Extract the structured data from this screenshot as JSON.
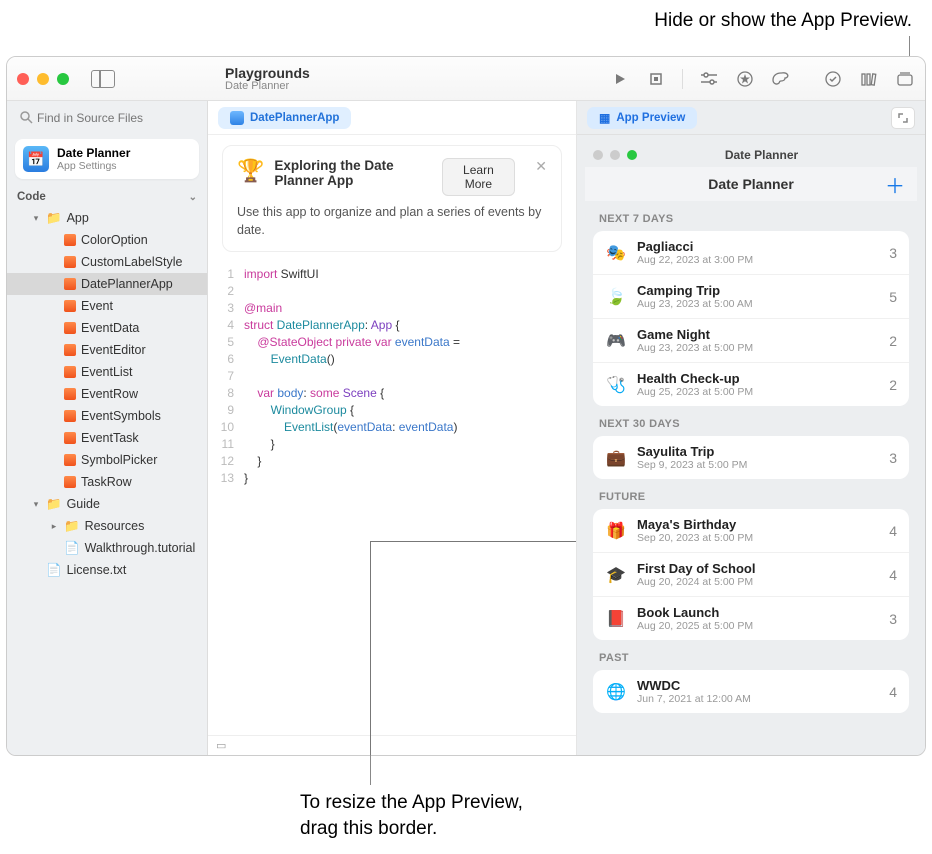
{
  "annotations": {
    "top": "Hide or show the App Preview.",
    "bottom_line1": "To resize the App Preview,",
    "bottom_line2": "drag this border."
  },
  "window": {
    "title": "Playgrounds",
    "subtitle": "Date Planner"
  },
  "sidebar": {
    "search_placeholder": "Find in Source Files",
    "project": {
      "title": "Date Planner",
      "subtitle": "App Settings"
    },
    "code_header": "Code",
    "items": [
      {
        "type": "folder",
        "label": "App",
        "indent": 1,
        "open": true
      },
      {
        "type": "swift",
        "label": "ColorOption",
        "indent": 2
      },
      {
        "type": "swift",
        "label": "CustomLabelStyle",
        "indent": 2
      },
      {
        "type": "swift",
        "label": "DatePlannerApp",
        "indent": 2,
        "selected": true
      },
      {
        "type": "swift",
        "label": "Event",
        "indent": 2
      },
      {
        "type": "swift",
        "label": "EventData",
        "indent": 2
      },
      {
        "type": "swift",
        "label": "EventEditor",
        "indent": 2
      },
      {
        "type": "swift",
        "label": "EventList",
        "indent": 2
      },
      {
        "type": "swift",
        "label": "EventRow",
        "indent": 2
      },
      {
        "type": "swift",
        "label": "EventSymbols",
        "indent": 2
      },
      {
        "type": "swift",
        "label": "EventTask",
        "indent": 2
      },
      {
        "type": "swift",
        "label": "SymbolPicker",
        "indent": 2
      },
      {
        "type": "swift",
        "label": "TaskRow",
        "indent": 2
      },
      {
        "type": "folder",
        "label": "Guide",
        "indent": 1,
        "open": true
      },
      {
        "type": "folder",
        "label": "Resources",
        "indent": 2,
        "open": false
      },
      {
        "type": "doc",
        "label": "Walkthrough.tutorial",
        "indent": 2
      },
      {
        "type": "doc",
        "label": "License.txt",
        "indent": 1
      }
    ]
  },
  "tab": {
    "label": "DatePlannerApp"
  },
  "info_card": {
    "title": "Exploring the Date Planner App",
    "button": "Learn More",
    "body": "Use this app to organize and plan a series of events by date."
  },
  "code": {
    "lines": [
      {
        "n": 1
      },
      {
        "n": 2
      },
      {
        "n": 3
      },
      {
        "n": 4
      },
      {
        "n": 5
      },
      {
        "n": 6
      },
      {
        "n": 7
      },
      {
        "n": 8
      },
      {
        "n": 9
      },
      {
        "n": 10
      },
      {
        "n": 11
      },
      {
        "n": 12
      },
      {
        "n": 13
      }
    ],
    "tokens": {
      "l1a": "import",
      "l1b": " SwiftUI",
      "l3a": "@main",
      "l4a": "struct",
      "l4b": " DatePlannerApp",
      "l4c": ": ",
      "l4d": "App",
      "l4e": " {",
      "l5a": "    @StateObject",
      "l5b": " private",
      "l5c": " var",
      "l5d": " eventData",
      "l5e": " = ",
      "l6a": "        EventData",
      "l6b": "()",
      "l7a": "    var",
      "l7b": " body",
      "l7c": ": ",
      "l7d": "some",
      "l7e": " Scene",
      "l7f": " {",
      "l8a": "        WindowGroup",
      "l8b": " {",
      "l9a": "            EventList",
      "l9b": "(",
      "l9c": "eventData",
      "l9d": ": ",
      "l9e": "eventData",
      "l9f": ")",
      "l10": "        }",
      "l11": "    }",
      "l12": "}"
    }
  },
  "preview": {
    "pill": "App Preview",
    "sim_title": "Date Planner",
    "nav_title": "Date Planner",
    "groups": [
      {
        "header": "NEXT 7 DAYS",
        "events": [
          {
            "icon": "🎭",
            "color": "#f2b200",
            "title": "Pagliacci",
            "date": "Aug 22, 2023 at 3:00 PM",
            "count": 3
          },
          {
            "icon": "🍃",
            "color": "#3bba5a",
            "title": "Camping Trip",
            "date": "Aug 23, 2023 at 5:00 AM",
            "count": 5
          },
          {
            "icon": "🎮",
            "color": "#3a9cf0",
            "title": "Game Night",
            "date": "Aug 23, 2023 at 5:00 PM",
            "count": 2
          },
          {
            "icon": "🩺",
            "color": "#6f62e8",
            "title": "Health Check-up",
            "date": "Aug 25, 2023 at 5:00 PM",
            "count": 2
          }
        ]
      },
      {
        "header": "NEXT 30 DAYS",
        "events": [
          {
            "icon": "💼",
            "color": "#f08a2c",
            "title": "Sayulita Trip",
            "date": "Sep 9, 2023 at 5:00 PM",
            "count": 3
          }
        ]
      },
      {
        "header": "FUTURE",
        "events": [
          {
            "icon": "🎁",
            "color": "#e74a4a",
            "title": "Maya's Birthday",
            "date": "Sep 20, 2023 at 5:00 PM",
            "count": 4
          },
          {
            "icon": "🎓",
            "color": "#222",
            "title": "First Day of School",
            "date": "Aug 20, 2024 at 5:00 PM",
            "count": 4
          },
          {
            "icon": "📕",
            "color": "#b84ad8",
            "title": "Book Launch",
            "date": "Aug 20, 2025 at 5:00 PM",
            "count": 3
          }
        ]
      },
      {
        "header": "PAST",
        "events": [
          {
            "icon": "🌐",
            "color": "#aaa",
            "title": "WWDC",
            "date": "Jun 7, 2021 at 12:00 AM",
            "count": 4
          }
        ]
      }
    ]
  }
}
